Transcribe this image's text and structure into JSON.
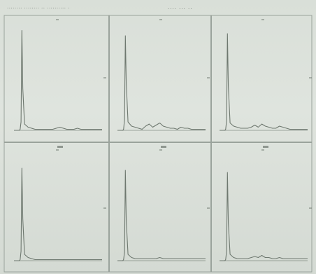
{
  "header": {
    "left_text": "........ ........ .. .......... .",
    "right_text": ".... ... .."
  },
  "panel_tick_labels": [
    "—",
    "—",
    "—"
  ],
  "colors": {
    "paper": "#dde2dc",
    "grid_line": "#9aa39c",
    "trace": "#6e786f",
    "text": "#6a726c"
  },
  "chart_data": {
    "type": "line",
    "layout": "2x3 grid of small multiples",
    "title": "",
    "xlabel": "",
    "ylabel": "",
    "grid": false,
    "panels": [
      {
        "row": 1,
        "col": 1,
        "label": "",
        "x": [
          0,
          2,
          4,
          6,
          7,
          8,
          9,
          10,
          12,
          16,
          20,
          24,
          28,
          32,
          36,
          40,
          44,
          48,
          52,
          56,
          60,
          64,
          68,
          72,
          76,
          80,
          84,
          88,
          92,
          96,
          100
        ],
        "y": [
          0,
          0,
          0,
          0,
          1,
          8,
          95,
          40,
          6,
          3,
          2,
          1,
          1,
          1,
          1,
          1,
          1,
          2,
          3,
          2,
          1,
          1,
          1,
          2,
          1,
          1,
          1,
          1,
          1,
          1,
          1
        ]
      },
      {
        "row": 1,
        "col": 2,
        "label": "",
        "x": [
          0,
          2,
          4,
          6,
          7,
          8,
          9,
          10,
          12,
          16,
          20,
          24,
          28,
          32,
          36,
          40,
          44,
          48,
          52,
          56,
          60,
          64,
          68,
          72,
          76,
          80,
          84,
          88,
          92,
          96,
          100
        ],
        "y": [
          0,
          0,
          0,
          0,
          1,
          10,
          90,
          45,
          8,
          4,
          3,
          2,
          1,
          4,
          6,
          3,
          5,
          7,
          4,
          3,
          2,
          2,
          1,
          3,
          2,
          2,
          1,
          1,
          1,
          1,
          1
        ]
      },
      {
        "row": 1,
        "col": 3,
        "label": "",
        "x": [
          0,
          2,
          4,
          6,
          7,
          8,
          9,
          10,
          12,
          16,
          20,
          24,
          28,
          32,
          36,
          40,
          44,
          48,
          52,
          56,
          60,
          64,
          68,
          72,
          76,
          80,
          84,
          88,
          92,
          96,
          100
        ],
        "y": [
          0,
          0,
          0,
          0,
          1,
          9,
          92,
          42,
          7,
          4,
          3,
          2,
          2,
          2,
          3,
          5,
          3,
          6,
          4,
          3,
          2,
          2,
          4,
          3,
          2,
          1,
          1,
          1,
          1,
          1,
          1
        ]
      },
      {
        "row": 2,
        "col": 1,
        "label": "",
        "x": [
          0,
          2,
          4,
          6,
          7,
          8,
          9,
          10,
          12,
          16,
          20,
          24,
          28,
          32,
          36,
          40,
          44,
          48,
          52,
          56,
          60,
          64,
          68,
          72,
          76,
          80,
          84,
          88,
          92,
          96,
          100
        ],
        "y": [
          0,
          0,
          0,
          0,
          1,
          9,
          88,
          40,
          6,
          3,
          2,
          1,
          1,
          1,
          1,
          1,
          1,
          1,
          1,
          1,
          1,
          1,
          1,
          1,
          1,
          1,
          1,
          1,
          1,
          1,
          1
        ]
      },
      {
        "row": 2,
        "col": 2,
        "label": "",
        "x": [
          0,
          2,
          4,
          6,
          7,
          8,
          9,
          10,
          12,
          16,
          20,
          24,
          28,
          32,
          36,
          40,
          44,
          48,
          52,
          56,
          60,
          64,
          68,
          72,
          76,
          80,
          84,
          88,
          92,
          96,
          100
        ],
        "y": [
          0,
          0,
          0,
          0,
          1,
          8,
          86,
          38,
          6,
          3,
          2,
          2,
          2,
          2,
          2,
          2,
          2,
          3,
          2,
          2,
          2,
          2,
          2,
          2,
          2,
          2,
          2,
          2,
          2,
          2,
          2
        ]
      },
      {
        "row": 2,
        "col": 3,
        "label": "",
        "x": [
          0,
          2,
          4,
          6,
          7,
          8,
          9,
          10,
          12,
          16,
          20,
          24,
          28,
          32,
          36,
          40,
          44,
          48,
          52,
          56,
          60,
          64,
          68,
          72,
          76,
          80,
          84,
          88,
          92,
          96,
          100
        ],
        "y": [
          0,
          0,
          0,
          0,
          1,
          9,
          84,
          36,
          6,
          3,
          2,
          2,
          2,
          2,
          3,
          4,
          3,
          5,
          3,
          3,
          2,
          2,
          3,
          2,
          2,
          2,
          2,
          2,
          2,
          2,
          2
        ]
      }
    ]
  }
}
